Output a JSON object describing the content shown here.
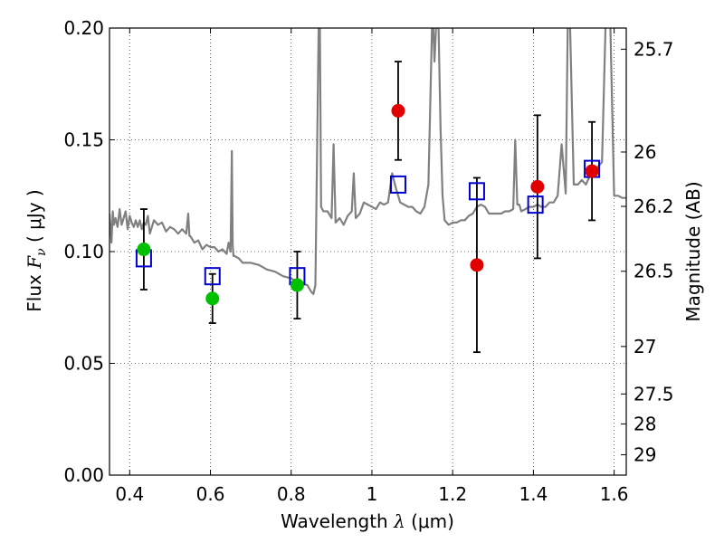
{
  "chart_data": {
    "type": "scatter",
    "xlabel": {
      "prefix": "Wavelength  ",
      "symbol": "λ",
      "suffix": " (μm)"
    },
    "ylabel": {
      "prefix": "Flux  ",
      "symbol": "F",
      "subscript": "ν",
      "suffix": "  ( μJy )"
    },
    "y2label": "Magnitude (AB)",
    "xlim": [
      0.35,
      1.63
    ],
    "ylim": [
      0.0,
      0.2
    ],
    "x_ticks": [
      {
        "value": 0.4,
        "label": "0.4"
      },
      {
        "value": 0.6,
        "label": "0.6"
      },
      {
        "value": 0.8,
        "label": "0.8"
      },
      {
        "value": 1.0,
        "label": "1"
      },
      {
        "value": 1.2,
        "label": "1.2"
      },
      {
        "value": 1.4,
        "label": "1.4"
      },
      {
        "value": 1.6,
        "label": "1.6"
      }
    ],
    "y_ticks": [
      {
        "value": 0.0,
        "label": "0.00"
      },
      {
        "value": 0.05,
        "label": "0.05"
      },
      {
        "value": 0.1,
        "label": "0.10"
      },
      {
        "value": 0.15,
        "label": "0.15"
      },
      {
        "value": 0.2,
        "label": "0.20"
      }
    ],
    "y2_ticks": [
      {
        "value": 25.7,
        "label": "25.7"
      },
      {
        "value": 26.0,
        "label": "26"
      },
      {
        "value": 26.2,
        "label": "26.2"
      },
      {
        "value": 26.5,
        "label": "26.5"
      },
      {
        "value": 27.0,
        "label": "27"
      },
      {
        "value": 27.5,
        "label": "27.5"
      },
      {
        "value": 28.0,
        "label": "28"
      },
      {
        "value": 29.0,
        "label": "29"
      }
    ],
    "grid": true,
    "colors": {
      "model": "#808080",
      "optical": "#00c000",
      "nir": "#e00000",
      "model_flux": "#0000cc",
      "errorbar": "#000000"
    },
    "model_spectrum": {
      "x": [
        0.35,
        0.355,
        0.358,
        0.361,
        0.365,
        0.37,
        0.375,
        0.38,
        0.385,
        0.39,
        0.395,
        0.4,
        0.405,
        0.41,
        0.415,
        0.42,
        0.425,
        0.43,
        0.435,
        0.44,
        0.445,
        0.45,
        0.46,
        0.47,
        0.48,
        0.49,
        0.5,
        0.51,
        0.52,
        0.53,
        0.54,
        0.545,
        0.548,
        0.55,
        0.56,
        0.57,
        0.58,
        0.59,
        0.6,
        0.61,
        0.62,
        0.63,
        0.64,
        0.645,
        0.65,
        0.653,
        0.655,
        0.657,
        0.66,
        0.67,
        0.68,
        0.7,
        0.72,
        0.74,
        0.76,
        0.78,
        0.8,
        0.82,
        0.84,
        0.85,
        0.855,
        0.86,
        0.865,
        0.868,
        0.871,
        0.874,
        0.88,
        0.89,
        0.9,
        0.905,
        0.91,
        0.92,
        0.93,
        0.94,
        0.95,
        0.955,
        0.96,
        0.97,
        0.98,
        0.99,
        1.0,
        1.01,
        1.02,
        1.03,
        1.04,
        1.05,
        1.06,
        1.07,
        1.08,
        1.09,
        1.1,
        1.11,
        1.12,
        1.13,
        1.14,
        1.15,
        1.155,
        1.16,
        1.165,
        1.17,
        1.175,
        1.18,
        1.19,
        1.2,
        1.21,
        1.22,
        1.23,
        1.24,
        1.25,
        1.26,
        1.27,
        1.28,
        1.29,
        1.3,
        1.31,
        1.32,
        1.33,
        1.34,
        1.35,
        1.355,
        1.36,
        1.365,
        1.37,
        1.38,
        1.39,
        1.4,
        1.41,
        1.42,
        1.43,
        1.44,
        1.45,
        1.46,
        1.47,
        1.48,
        1.485,
        1.49,
        1.5,
        1.51,
        1.52,
        1.53,
        1.54,
        1.55,
        1.56,
        1.57,
        1.58,
        1.59,
        1.6,
        1.61,
        1.62,
        1.63
      ],
      "y": [
        0.117,
        0.104,
        0.118,
        0.112,
        0.115,
        0.111,
        0.119,
        0.112,
        0.115,
        0.118,
        0.11,
        0.116,
        0.113,
        0.111,
        0.114,
        0.111,
        0.114,
        0.11,
        0.113,
        0.112,
        0.116,
        0.108,
        0.114,
        0.112,
        0.113,
        0.109,
        0.111,
        0.11,
        0.108,
        0.11,
        0.108,
        0.117,
        0.107,
        0.107,
        0.104,
        0.105,
        0.101,
        0.103,
        0.102,
        0.102,
        0.1,
        0.101,
        0.099,
        0.104,
        0.1,
        0.145,
        0.103,
        0.098,
        0.098,
        0.097,
        0.095,
        0.095,
        0.094,
        0.092,
        0.091,
        0.089,
        0.088,
        0.086,
        0.085,
        0.082,
        0.081,
        0.085,
        0.155,
        0.2,
        0.205,
        0.12,
        0.118,
        0.118,
        0.115,
        0.148,
        0.113,
        0.115,
        0.112,
        0.116,
        0.118,
        0.135,
        0.115,
        0.117,
        0.122,
        0.121,
        0.12,
        0.119,
        0.122,
        0.121,
        0.122,
        0.135,
        0.128,
        0.122,
        0.121,
        0.12,
        0.12,
        0.118,
        0.117,
        0.12,
        0.13,
        0.21,
        0.185,
        0.205,
        0.2,
        0.155,
        0.125,
        0.114,
        0.112,
        0.113,
        0.113,
        0.114,
        0.114,
        0.116,
        0.117,
        0.12,
        0.121,
        0.12,
        0.117,
        0.117,
        0.117,
        0.117,
        0.118,
        0.118,
        0.119,
        0.15,
        0.121,
        0.121,
        0.118,
        0.119,
        0.12,
        0.12,
        0.121,
        0.12,
        0.12,
        0.122,
        0.122,
        0.125,
        0.148,
        0.126,
        0.2,
        0.208,
        0.13,
        0.13,
        0.132,
        0.13,
        0.134,
        0.136,
        0.138,
        0.14,
        0.21,
        0.205,
        0.125,
        0.125,
        0.124,
        0.124
      ]
    },
    "series": [
      {
        "group": "optical",
        "marker": "circle",
        "x": [
          0.435,
          0.605,
          0.815
        ],
        "y": [
          0.101,
          0.079,
          0.085
        ],
        "yerr": [
          0.018,
          0.011,
          0.015
        ]
      },
      {
        "group": "nir",
        "marker": "circle",
        "x": [
          1.065,
          1.26,
          1.41,
          1.545
        ],
        "y": [
          0.163,
          0.094,
          0.129,
          0.136
        ],
        "yerr": [
          0.022,
          0.039,
          0.032,
          0.022
        ]
      },
      {
        "group": "model_flux",
        "marker": "square",
        "x": [
          0.435,
          0.605,
          0.815,
          1.065,
          1.26,
          1.405,
          1.545
        ],
        "y": [
          0.097,
          0.089,
          0.089,
          0.13,
          0.127,
          0.121,
          0.137
        ]
      }
    ]
  }
}
